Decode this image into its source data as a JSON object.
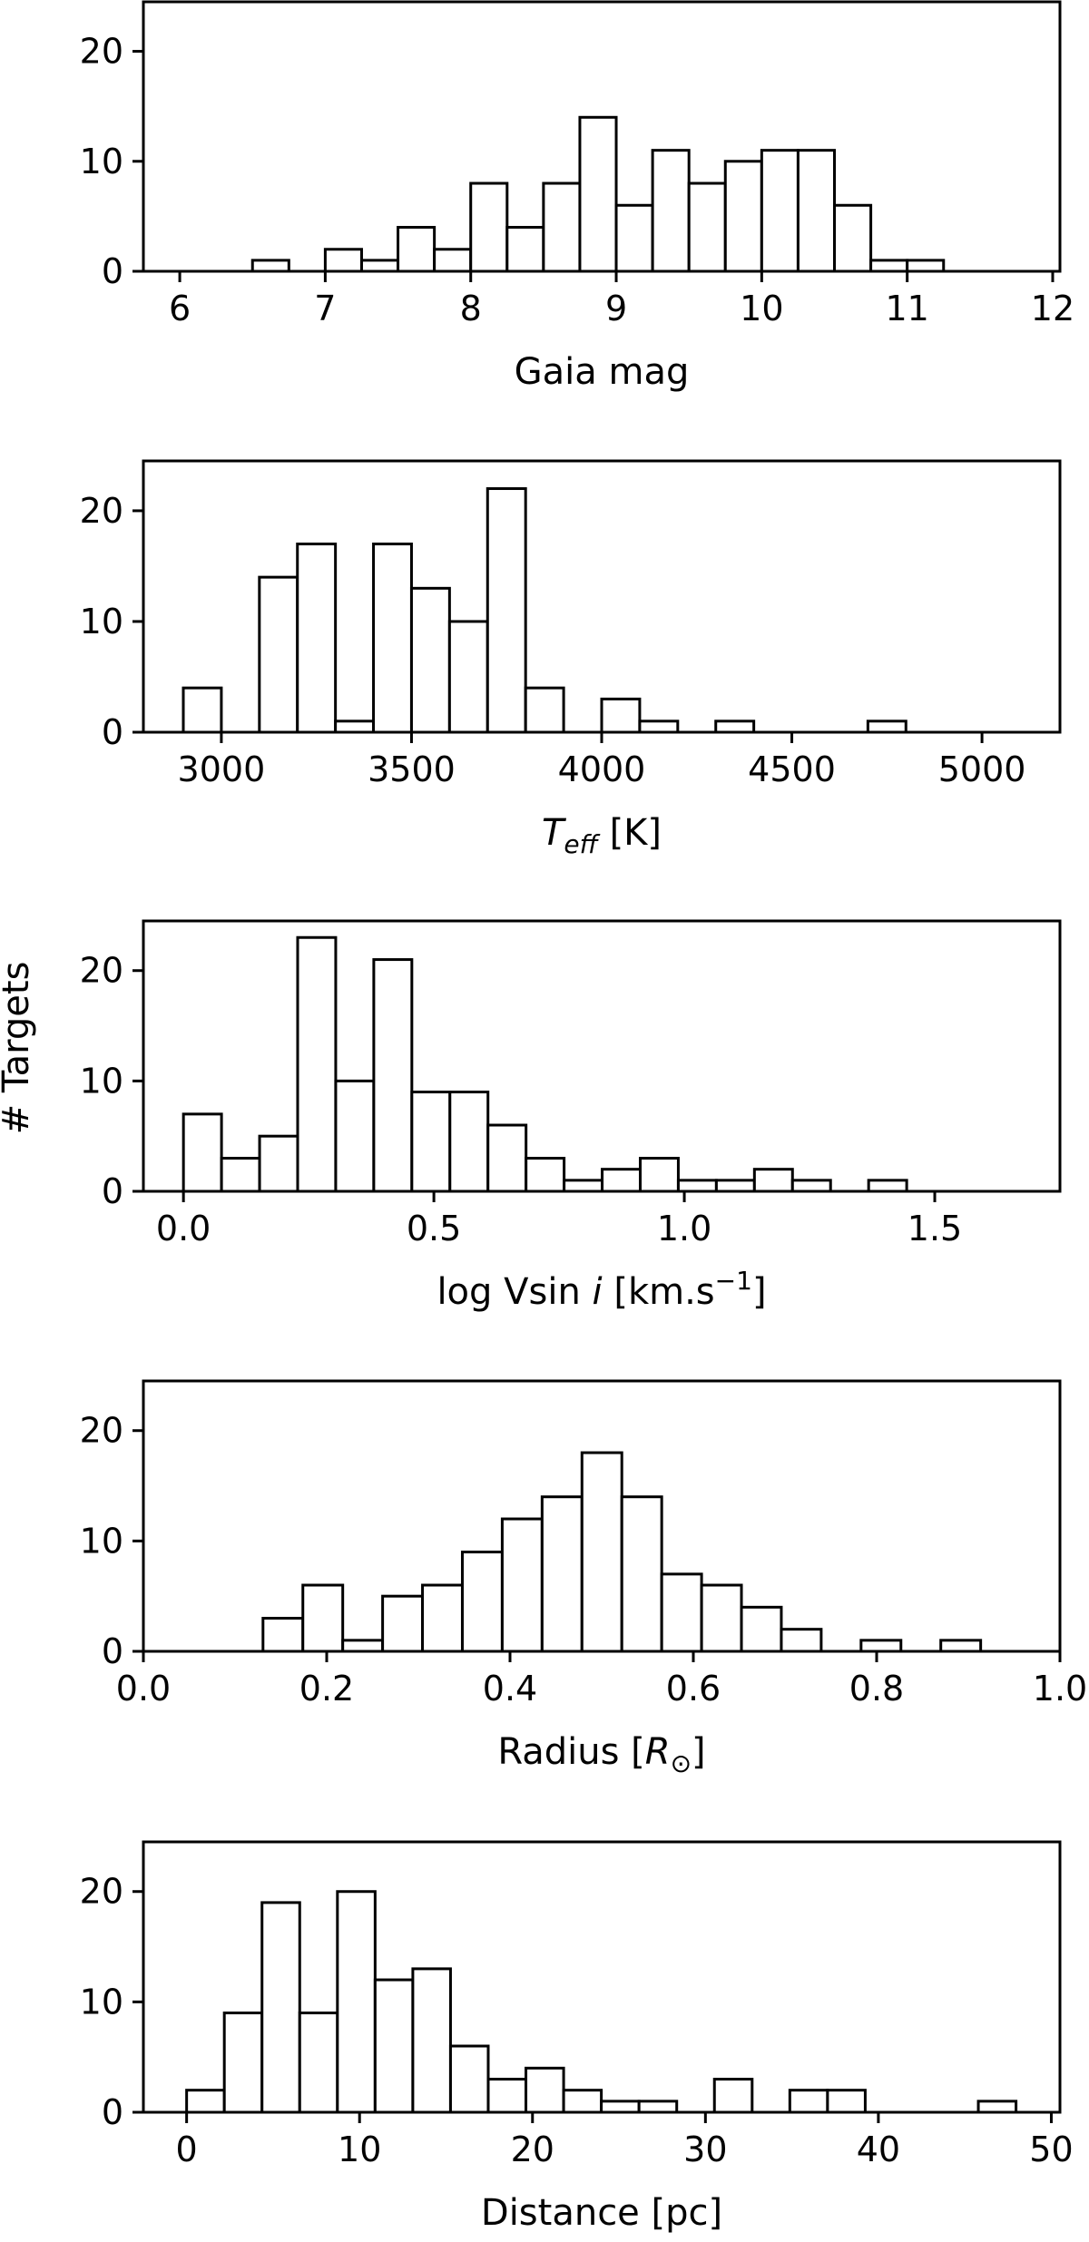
{
  "figure": {
    "shared_ylabel": "# Targets"
  },
  "chart_data": [
    {
      "type": "bar",
      "title": "",
      "xlabel": "Gaia mag",
      "ylabel": "# Targets",
      "xlim": [
        5.75,
        12.05
      ],
      "ylim": [
        0,
        24.5
      ],
      "xticks": [
        6,
        7,
        8,
        9,
        10,
        11,
        12
      ],
      "xtick_labels": [
        "6",
        "7",
        "8",
        "9",
        "10",
        "11",
        "12"
      ],
      "yticks": [
        0,
        10,
        20
      ],
      "ytick_labels": [
        "0",
        "10",
        "20"
      ],
      "bin_start": 6.0,
      "bin_width": 0.25,
      "values": [
        0,
        0,
        1,
        0,
        2,
        1,
        4,
        2,
        8,
        4,
        8,
        14,
        6,
        11,
        8,
        10,
        11,
        11,
        6,
        1,
        1,
        0
      ]
    },
    {
      "type": "bar",
      "title": "",
      "xlabel": "T_eff [K]",
      "xlabel_parts": {
        "symbol": "T",
        "subscript": "eff",
        "rest": " [K]"
      },
      "ylabel": "# Targets",
      "xlim": [
        2795,
        5205
      ],
      "ylim": [
        0,
        24.5
      ],
      "xticks": [
        3000,
        3500,
        4000,
        4500,
        5000
      ],
      "xtick_labels": [
        "3000",
        "3500",
        "4000",
        "4500",
        "5000"
      ],
      "yticks": [
        0,
        10,
        20
      ],
      "ytick_labels": [
        "0",
        "10",
        "20"
      ],
      "bin_start": 2900,
      "bin_width": 100,
      "values": [
        4,
        0,
        14,
        17,
        1,
        17,
        13,
        10,
        22,
        4,
        0,
        3,
        1,
        0,
        1,
        0,
        0,
        0,
        1,
        0,
        0,
        0
      ]
    },
    {
      "type": "bar",
      "title": "",
      "xlabel": "log Vsin i [km.s−1]",
      "xlabel_parts": {
        "prefix": "log Vsin ",
        "italic": "i",
        "mid": " [km.s",
        "sup": "−1",
        "suffix": "]"
      },
      "ylabel": "# Targets",
      "xlim": [
        -0.08,
        1.75
      ],
      "ylim": [
        0,
        24.5
      ],
      "xticks": [
        0.0,
        0.5,
        1.0,
        1.5
      ],
      "xtick_labels": [
        "0.0",
        "0.5",
        "1.0",
        "1.5"
      ],
      "yticks": [
        0,
        10,
        20
      ],
      "ytick_labels": [
        "0",
        "10",
        "20"
      ],
      "bin_start": 0.0,
      "bin_width": 0.076,
      "values": [
        7,
        3,
        5,
        23,
        10,
        21,
        9,
        9,
        6,
        3,
        1,
        2,
        3,
        1,
        1,
        2,
        1,
        0,
        1,
        0,
        0,
        0
      ]
    },
    {
      "type": "bar",
      "title": "",
      "xlabel": "Radius [R⊙]",
      "xlabel_parts": {
        "prefix": "Radius [",
        "symbol": "R",
        "subscript": "⊙",
        "suffix": "]"
      },
      "ylabel": "# Targets",
      "xlim": [
        0.0,
        1.0
      ],
      "ylim": [
        0,
        24.5
      ],
      "xticks": [
        0.0,
        0.2,
        0.4,
        0.6,
        0.8,
        1.0
      ],
      "xtick_labels": [
        "0.0",
        "0.2",
        "0.4",
        "0.6",
        "0.8",
        "1.0"
      ],
      "yticks": [
        0,
        10,
        20
      ],
      "ytick_labels": [
        "0",
        "10",
        "20"
      ],
      "bin_start": 0.0,
      "bin_width": 0.0435,
      "values": [
        0,
        0,
        0,
        3,
        6,
        1,
        5,
        6,
        9,
        12,
        14,
        18,
        14,
        7,
        6,
        4,
        2,
        0,
        1,
        0,
        1,
        0
      ]
    },
    {
      "type": "bar",
      "title": "",
      "xlabel": "Distance [pc]",
      "ylabel": "# Targets",
      "xlim": [
        -2.5,
        50.5
      ],
      "ylim": [
        0,
        24.5
      ],
      "xticks": [
        0,
        10,
        20,
        30,
        40,
        50
      ],
      "xtick_labels": [
        "0",
        "10",
        "20",
        "30",
        "40",
        "50"
      ],
      "yticks": [
        0,
        10,
        20
      ],
      "ytick_labels": [
        "0",
        "10",
        "20"
      ],
      "bin_start": 0.0,
      "bin_width": 2.18,
      "values": [
        2,
        9,
        19,
        9,
        20,
        12,
        13,
        6,
        3,
        4,
        2,
        1,
        1,
        0,
        3,
        0,
        2,
        2,
        0,
        0,
        0,
        1
      ]
    }
  ]
}
